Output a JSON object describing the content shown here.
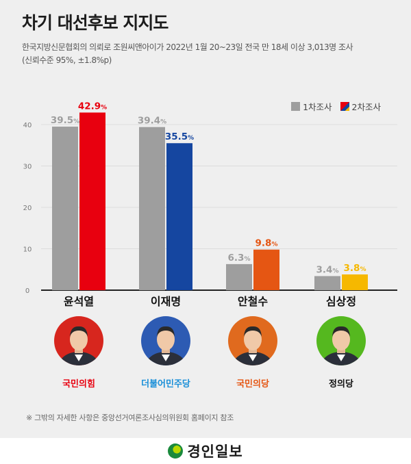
{
  "title": "차기 대선후보 지지도",
  "subtitle_line1": "한국지방신문협회의 의뢰로 조원씨앤아이가 2022년 1월 20~23일 전국 만 18세 이상 3,013명 조사",
  "subtitle_line2": "(신뢰수준 95%, ±1.8%p)",
  "legend": {
    "first": "1차조사",
    "second": "2차조사"
  },
  "note": "※ 그밖의 자세한 사항은 중앙선거여론조사심의위원회 홈페이지 참조",
  "footer_brand": "경인일보",
  "colors": {
    "first_round": "#9e9e9e",
    "background": "#efefef"
  },
  "candidates": [
    {
      "name": "윤석열",
      "party": "국민의힘",
      "color": "#e8000f",
      "party_color": "#e8000f",
      "photo_bg": "#d7261e"
    },
    {
      "name": "이재명",
      "party": "더불어민주당",
      "color": "#1546a0",
      "party_color": "#1a8fd8",
      "photo_bg": "#2d5bb3"
    },
    {
      "name": "안철수",
      "party": "국민의당",
      "color": "#e55613",
      "party_color": "#e55613",
      "photo_bg": "#e06a1e"
    },
    {
      "name": "심상정",
      "party": "정의당",
      "color": "#f6b800",
      "party_color": "#111111",
      "photo_bg": "#55b81f"
    }
  ],
  "chart_data": {
    "type": "bar",
    "categories": [
      "윤석열",
      "이재명",
      "안철수",
      "심상정"
    ],
    "series": [
      {
        "name": "1차조사",
        "values": [
          39.5,
          39.4,
          6.3,
          3.4
        ],
        "labels": [
          "39.5",
          "39.4",
          "6.3",
          "3.4"
        ]
      },
      {
        "name": "2차조사",
        "values": [
          42.9,
          35.5,
          9.8,
          3.8
        ],
        "labels": [
          "42.9",
          "35.5",
          "9.8",
          "3.8"
        ]
      }
    ],
    "value_suffix": "%",
    "yticks": [
      0,
      10,
      20,
      30,
      40
    ],
    "ylim": [
      0,
      43
    ],
    "grid": true,
    "legend_position": "top-right"
  }
}
